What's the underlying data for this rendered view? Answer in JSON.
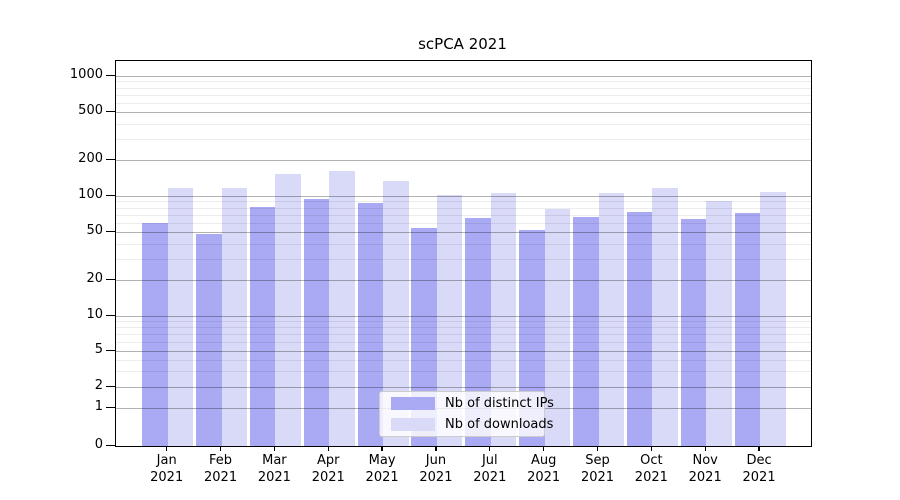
{
  "chart_data": {
    "type": "bar",
    "title": "scPCA 2021",
    "categories": [
      "Jan",
      "Feb",
      "Mar",
      "Apr",
      "May",
      "Jun",
      "Jul",
      "Aug",
      "Sep",
      "Oct",
      "Nov",
      "Dec"
    ],
    "category_year": "2021",
    "series": [
      {
        "name": "Nb of distinct IPs",
        "color": "#a9a9f4",
        "values": [
          60,
          48,
          81,
          94,
          87,
          54,
          66,
          52,
          67,
          74,
          64,
          72
        ]
      },
      {
        "name": "Nb of downloads",
        "color": "#d9d9f8",
        "values": [
          116,
          117,
          152,
          161,
          133,
          101,
          105,
          78,
          105,
          117,
          90,
          109
        ]
      }
    ],
    "yscale": "log-like",
    "y_major_ticks": [
      0,
      1,
      2,
      5,
      10,
      20,
      50,
      100,
      200,
      500,
      1000
    ],
    "y_minor_ticks": [
      3,
      4,
      6,
      7,
      8,
      9,
      30,
      40,
      60,
      70,
      80,
      90,
      300,
      400,
      600,
      700,
      800,
      900
    ],
    "ylim": [
      0,
      1333
    ],
    "xlabel": "",
    "ylabel": "",
    "grid": true,
    "legend_position": "lower center"
  }
}
